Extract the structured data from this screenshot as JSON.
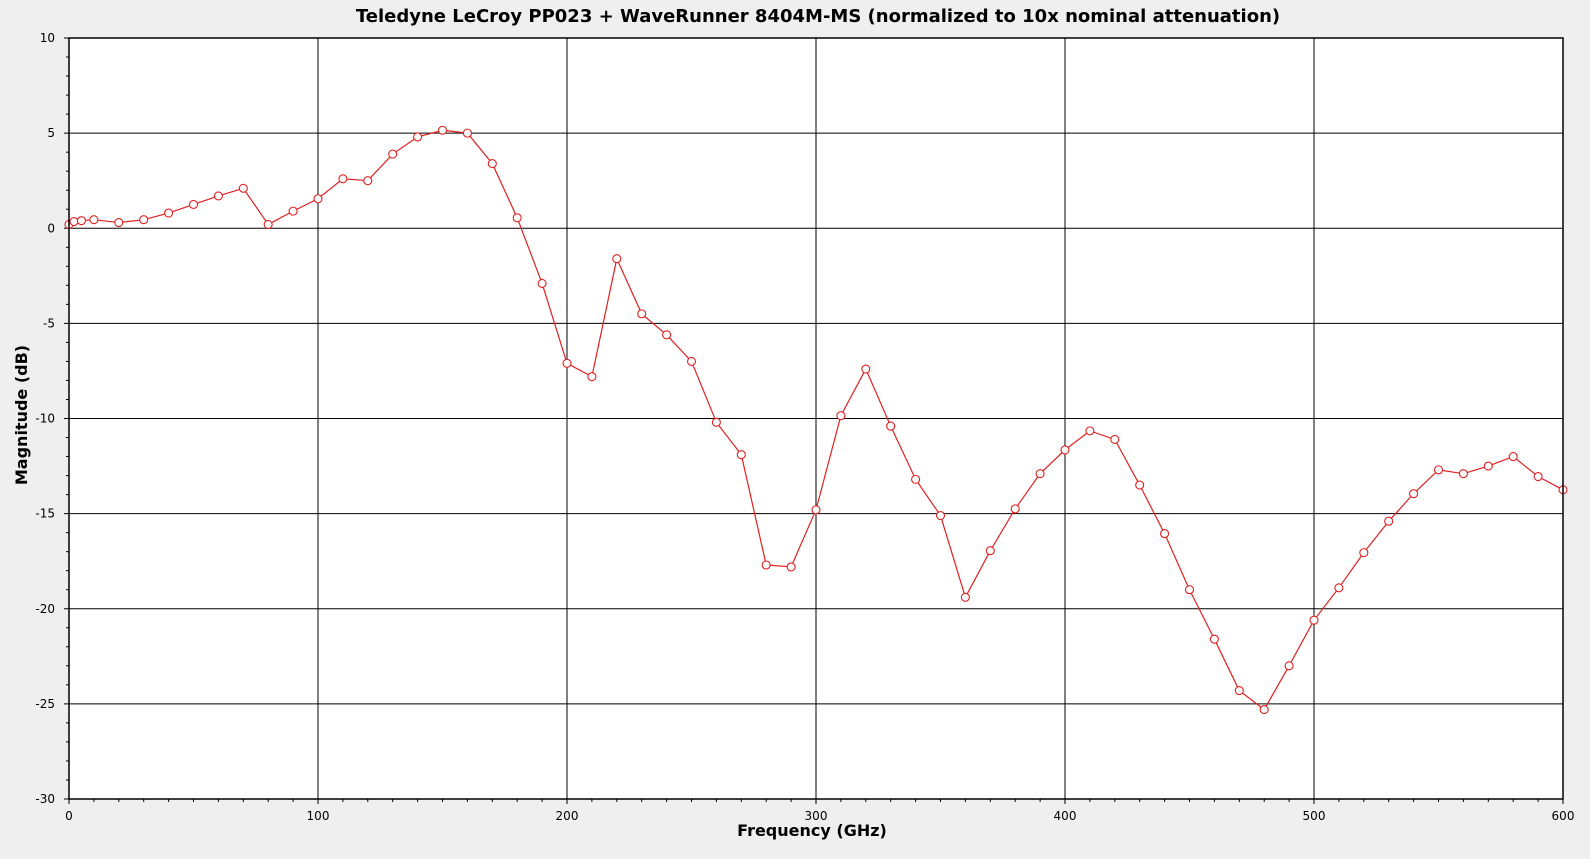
{
  "chart_data": {
    "type": "line",
    "title": "Teledyne LeCroy PP023 + WaveRunner 8404M-MS (normalized to 10x nominal attenuation)",
    "xlabel": "Frequency (GHz)",
    "ylabel": "Magnitude (dB)",
    "xlim": [
      0,
      600
    ],
    "ylim": [
      -30,
      10
    ],
    "x_ticks": [
      0,
      100,
      200,
      300,
      400,
      500,
      600
    ],
    "y_ticks": [
      -30,
      -25,
      -20,
      -15,
      -10,
      -5,
      0,
      5,
      10
    ],
    "x_tick_labels": [
      "0",
      "100",
      "200",
      "300",
      "400",
      "500",
      "600"
    ],
    "y_tick_labels": [
      "-30",
      "-25",
      "-20",
      "-15",
      "-10",
      "-5",
      "0",
      "5",
      "10"
    ],
    "grid": true,
    "legend": "none",
    "series": [
      {
        "color": "#e02020",
        "marker": "open-circle",
        "x": [
          0,
          2,
          5,
          10,
          20,
          30,
          40,
          50,
          60,
          70,
          80,
          90,
          100,
          110,
          120,
          130,
          140,
          150,
          160,
          170,
          180,
          190,
          200,
          210,
          220,
          230,
          240,
          250,
          260,
          270,
          280,
          290,
          300,
          310,
          320,
          330,
          340,
          350,
          360,
          370,
          380,
          390,
          400,
          410,
          420,
          430,
          440,
          450,
          460,
          470,
          480,
          490,
          500,
          510,
          520,
          530,
          540,
          550,
          560,
          570,
          580,
          590,
          600
        ],
        "y": [
          0.2,
          0.35,
          0.4,
          0.45,
          0.3,
          0.45,
          0.8,
          1.25,
          1.7,
          2.1,
          0.2,
          0.9,
          1.55,
          2.6,
          2.5,
          3.9,
          4.8,
          5.15,
          5.0,
          3.4,
          0.55,
          -2.9,
          -7.1,
          -7.8,
          -1.6,
          -4.5,
          -5.6,
          -7.0,
          -10.2,
          -11.9,
          -17.7,
          -17.8,
          -14.8,
          -9.85,
          -7.4,
          -10.4,
          -13.2,
          -15.1,
          -19.4,
          -16.95,
          -14.75,
          -12.9,
          -11.65,
          -10.65,
          -11.1,
          -13.5,
          -16.05,
          -19.0,
          -21.6,
          -24.3,
          -25.3,
          -23.0,
          -20.6,
          -18.9,
          -17.05,
          -15.4,
          -13.95,
          -12.7,
          -12.9,
          -12.5,
          -12.0,
          -13.05,
          -13.75
        ]
      }
    ]
  }
}
